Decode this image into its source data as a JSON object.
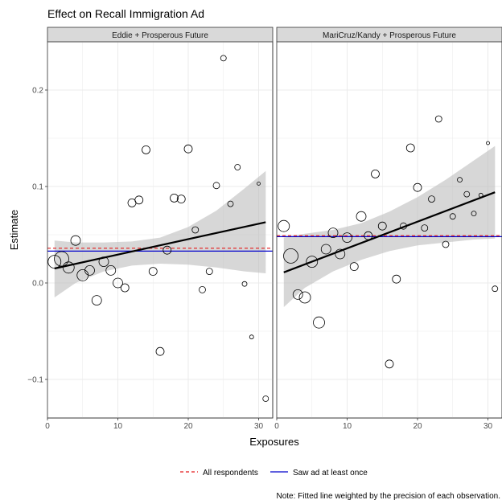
{
  "chart_data": {
    "type": "scatter",
    "title": "Effect on Recall Immigration Ad",
    "xlabel": "Exposures",
    "ylabel": "Estimate",
    "xlim": [
      0,
      32
    ],
    "ylim": [
      -0.14,
      0.25
    ],
    "x_ticks": [
      0,
      10,
      20,
      30
    ],
    "y_ticks": [
      -0.1,
      0.0,
      0.1,
      0.2
    ],
    "y_tick_labels": [
      "−0.1",
      "0.0",
      "0.1",
      "0.2"
    ],
    "grid": true,
    "legend_position": "bottom",
    "legend": [
      {
        "label": "All respondents",
        "color": "#e41a1c",
        "style": "dashed"
      },
      {
        "label": "Saw ad at least once",
        "color": "#0000cc",
        "style": "solid"
      }
    ],
    "caption": "Note: Fitted line weighted by the precision of each observation.",
    "panels": [
      {
        "label": "Eddie + Prosperous Future",
        "all_respondents": 0.036,
        "saw_at_least_once": 0.033,
        "fit": {
          "x": [
            1,
            31
          ],
          "y": [
            0.015,
            0.063
          ]
        },
        "band": {
          "x": [
            1,
            4,
            8,
            12,
            16,
            20,
            24,
            28,
            31
          ],
          "lower": [
            -0.015,
            0.0,
            0.012,
            0.018,
            0.02,
            0.019,
            0.016,
            0.012,
            0.01
          ],
          "upper": [
            0.044,
            0.042,
            0.042,
            0.043,
            0.047,
            0.058,
            0.075,
            0.098,
            0.116
          ]
        },
        "points": [
          {
            "x": 1,
            "y": 0.022,
            "w": 8
          },
          {
            "x": 2,
            "y": 0.025,
            "w": 9
          },
          {
            "x": 3,
            "y": 0.016,
            "w": 7
          },
          {
            "x": 4,
            "y": 0.044,
            "w": 6
          },
          {
            "x": 5,
            "y": 0.008,
            "w": 7
          },
          {
            "x": 6,
            "y": 0.013,
            "w": 6
          },
          {
            "x": 7,
            "y": -0.018,
            "w": 6
          },
          {
            "x": 8,
            "y": 0.022,
            "w": 6
          },
          {
            "x": 9,
            "y": 0.013,
            "w": 6
          },
          {
            "x": 10,
            "y": 0.0,
            "w": 6
          },
          {
            "x": 11,
            "y": -0.005,
            "w": 5
          },
          {
            "x": 12,
            "y": 0.083,
            "w": 5
          },
          {
            "x": 13,
            "y": 0.086,
            "w": 5
          },
          {
            "x": 14,
            "y": 0.138,
            "w": 5
          },
          {
            "x": 15,
            "y": 0.012,
            "w": 5
          },
          {
            "x": 16,
            "y": -0.071,
            "w": 5
          },
          {
            "x": 17,
            "y": 0.034,
            "w": 5
          },
          {
            "x": 18,
            "y": 0.088,
            "w": 5
          },
          {
            "x": 19,
            "y": 0.087,
            "w": 5
          },
          {
            "x": 20,
            "y": 0.139,
            "w": 5
          },
          {
            "x": 21,
            "y": 0.055,
            "w": 4
          },
          {
            "x": 22,
            "y": -0.007,
            "w": 4
          },
          {
            "x": 23,
            "y": 0.012,
            "w": 4
          },
          {
            "x": 24,
            "y": 0.101,
            "w": 4
          },
          {
            "x": 25,
            "y": 0.233,
            "w": 3.5
          },
          {
            "x": 26,
            "y": 0.082,
            "w": 3.5
          },
          {
            "x": 27,
            "y": 0.12,
            "w": 3.5
          },
          {
            "x": 28,
            "y": -0.001,
            "w": 3
          },
          {
            "x": 29,
            "y": -0.056,
            "w": 2.5
          },
          {
            "x": 30,
            "y": 0.103,
            "w": 2
          },
          {
            "x": 31,
            "y": -0.12,
            "w": 3.5
          }
        ]
      },
      {
        "label": "MariCruz/Kandy + Prosperous Future",
        "all_respondents": 0.049,
        "saw_at_least_once": 0.048,
        "fit": {
          "x": [
            1,
            31
          ],
          "y": [
            0.011,
            0.094
          ]
        },
        "band": {
          "x": [
            1,
            4,
            8,
            12,
            16,
            20,
            24,
            28,
            31
          ],
          "lower": [
            -0.025,
            -0.005,
            0.012,
            0.024,
            0.033,
            0.039,
            0.042,
            0.045,
            0.046
          ],
          "upper": [
            0.047,
            0.051,
            0.055,
            0.062,
            0.074,
            0.089,
            0.107,
            0.127,
            0.142
          ]
        },
        "points": [
          {
            "x": 1,
            "y": 0.059,
            "w": 7
          },
          {
            "x": 2,
            "y": 0.028,
            "w": 9
          },
          {
            "x": 3,
            "y": -0.012,
            "w": 6
          },
          {
            "x": 4,
            "y": -0.015,
            "w": 7
          },
          {
            "x": 5,
            "y": 0.022,
            "w": 7
          },
          {
            "x": 6,
            "y": -0.041,
            "w": 7
          },
          {
            "x": 7,
            "y": 0.035,
            "w": 6
          },
          {
            "x": 8,
            "y": 0.052,
            "w": 6
          },
          {
            "x": 9,
            "y": 0.03,
            "w": 6
          },
          {
            "x": 10,
            "y": 0.047,
            "w": 6
          },
          {
            "x": 11,
            "y": 0.017,
            "w": 5
          },
          {
            "x": 12,
            "y": 0.069,
            "w": 6
          },
          {
            "x": 13,
            "y": 0.049,
            "w": 5
          },
          {
            "x": 14,
            "y": 0.113,
            "w": 5
          },
          {
            "x": 15,
            "y": 0.059,
            "w": 5
          },
          {
            "x": 16,
            "y": -0.084,
            "w": 5
          },
          {
            "x": 17,
            "y": 0.004,
            "w": 5
          },
          {
            "x": 18,
            "y": 0.059,
            "w": 4
          },
          {
            "x": 19,
            "y": 0.14,
            "w": 5
          },
          {
            "x": 20,
            "y": 0.099,
            "w": 5
          },
          {
            "x": 21,
            "y": 0.057,
            "w": 4
          },
          {
            "x": 22,
            "y": 0.087,
            "w": 4
          },
          {
            "x": 23,
            "y": 0.17,
            "w": 4
          },
          {
            "x": 24,
            "y": 0.04,
            "w": 4
          },
          {
            "x": 25,
            "y": 0.069,
            "w": 3.5
          },
          {
            "x": 26,
            "y": 0.107,
            "w": 3
          },
          {
            "x": 27,
            "y": 0.092,
            "w": 3.5
          },
          {
            "x": 28,
            "y": 0.072,
            "w": 3
          },
          {
            "x": 29,
            "y": 0.091,
            "w": 2.5
          },
          {
            "x": 30,
            "y": 0.145,
            "w": 2
          },
          {
            "x": 31,
            "y": -0.006,
            "w": 3.5
          }
        ]
      }
    ]
  }
}
